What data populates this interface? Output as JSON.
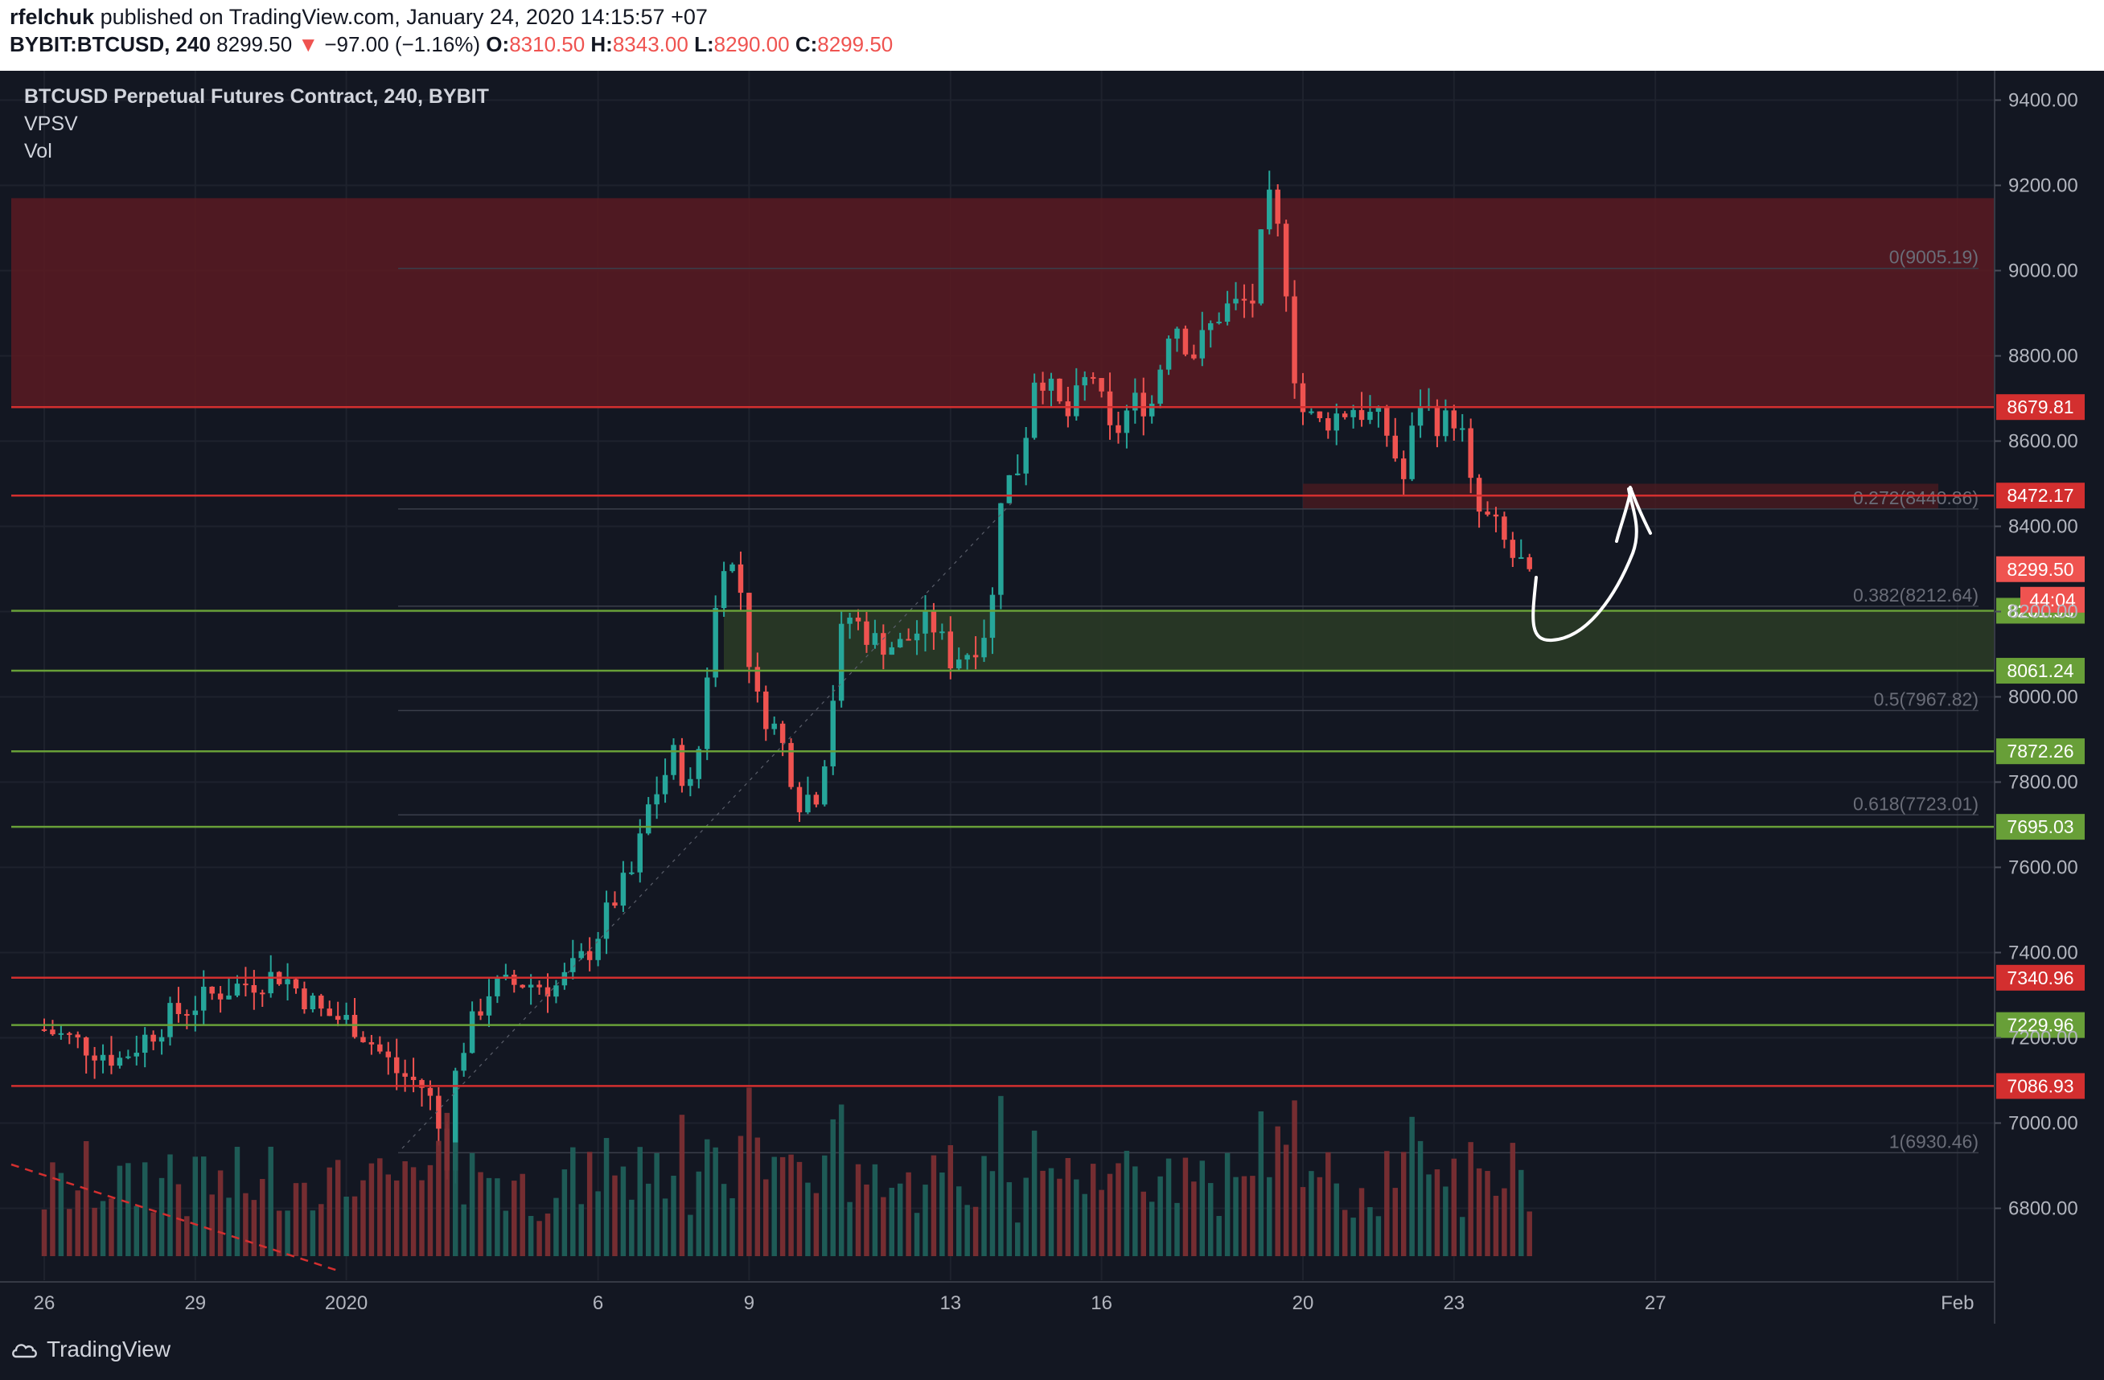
{
  "header": {
    "author": "rfelchuk",
    "published_text": "published on TradingView.com, January 24, 2020 14:15:57 +07",
    "symbol": "BYBIT:BTCUSD, 240",
    "last": "8299.50",
    "change": "−97.00 (−1.16%)",
    "o_label": "O:",
    "o": "8310.50",
    "h_label": "H:",
    "h": "8343.00",
    "l_label": "L:",
    "l": "8290.00",
    "c_label": "C:",
    "c": "8299.50"
  },
  "footer": {
    "brand": "TradingView"
  },
  "chart_data": {
    "type": "candlestick",
    "title": "BTCUSD Perpetual Futures Contract, 240, BYBIT",
    "indicators": [
      "VPSV",
      "Vol"
    ],
    "ylim": [
      6650,
      9450
    ],
    "y_ticks": [
      9400,
      9200,
      9000,
      8800,
      8600,
      8400,
      8200,
      8000,
      7800,
      7600,
      7400,
      7200,
      7000,
      6800
    ],
    "y_tick_labels": [
      "9400.00",
      "9200.00",
      "9000.00",
      "8800.00",
      "8600.00",
      "8400.00",
      "8200.00",
      "8000.00",
      "7800.00",
      "7600.00",
      "7400.00",
      "7200.00",
      "7000.00",
      "6800.00"
    ],
    "x_tick_labels": [
      "26",
      "29",
      "2020",
      "6",
      "9",
      "13",
      "16",
      "20",
      "23",
      "27",
      "Feb"
    ],
    "x_tick_days": [
      0,
      3,
      6,
      11,
      14,
      18,
      21,
      25,
      28,
      32,
      38
    ],
    "candle_anchors": [
      [
        0,
        7220
      ],
      [
        1.5,
        7150
      ],
      [
        2.5,
        7250
      ],
      [
        3.5,
        7310
      ],
      [
        4.7,
        7350
      ],
      [
        5.5,
        7260
      ],
      [
        6.2,
        7230
      ],
      [
        7.0,
        7120
      ],
      [
        7.6,
        7080
      ],
      [
        8.0,
        6920
      ],
      [
        8.2,
        7150
      ],
      [
        8.8,
        7310
      ],
      [
        9.5,
        7330
      ],
      [
        10.2,
        7320
      ],
      [
        10.8,
        7400
      ],
      [
        11.3,
        7520
      ],
      [
        11.7,
        7590
      ],
      [
        12.0,
        7740
      ],
      [
        12.5,
        7860
      ],
      [
        12.9,
        7770
      ],
      [
        13.2,
        8100
      ],
      [
        13.5,
        8330
      ],
      [
        13.8,
        8280
      ],
      [
        14.1,
        8000
      ],
      [
        14.6,
        7910
      ],
      [
        15.0,
        7760
      ],
      [
        15.4,
        7780
      ],
      [
        15.9,
        8200
      ],
      [
        16.5,
        8130
      ],
      [
        17.0,
        8120
      ],
      [
        17.6,
        8180
      ],
      [
        18.0,
        8090
      ],
      [
        18.4,
        8110
      ],
      [
        18.8,
        8180
      ],
      [
        19.0,
        8480
      ],
      [
        19.4,
        8550
      ],
      [
        19.7,
        8780
      ],
      [
        20.3,
        8650
      ],
      [
        20.8,
        8770
      ],
      [
        21.2,
        8600
      ],
      [
        21.6,
        8690
      ],
      [
        22.0,
        8690
      ],
      [
        22.4,
        8900
      ],
      [
        22.8,
        8800
      ],
      [
        23.4,
        8910
      ],
      [
        24.0,
        8930
      ],
      [
        24.3,
        9170
      ],
      [
        24.6,
        9050
      ],
      [
        24.9,
        8680
      ],
      [
        25.3,
        8640
      ],
      [
        26.0,
        8680
      ],
      [
        26.6,
        8640
      ],
      [
        27.0,
        8510
      ],
      [
        27.3,
        8700
      ],
      [
        27.7,
        8640
      ],
      [
        28.1,
        8660
      ],
      [
        28.4,
        8440
      ],
      [
        28.8,
        8400
      ],
      [
        29.2,
        8320
      ],
      [
        29.5,
        8300
      ]
    ],
    "candles_count": 178,
    "last_price": 8299.5,
    "countdown": "44:04",
    "horizontal_levels": [
      {
        "price": 8679.81,
        "label": "8679.81",
        "color": "#d32f2f",
        "kind": "resistance"
      },
      {
        "price": 8472.17,
        "label": "8472.17",
        "color": "#d32f2f",
        "kind": "resistance"
      },
      {
        "price": 8201.98,
        "label": "8201.98",
        "color": "#689f38",
        "kind": "support"
      },
      {
        "price": 8061.24,
        "label": "8061.24",
        "color": "#689f38",
        "kind": "support"
      },
      {
        "price": 7872.26,
        "label": "7872.26",
        "color": "#689f38",
        "kind": "support"
      },
      {
        "price": 7695.03,
        "label": "7695.03",
        "color": "#689f38",
        "kind": "support"
      },
      {
        "price": 7340.96,
        "label": "7340.96",
        "color": "#d32f2f",
        "kind": "resistance"
      },
      {
        "price": 7229.96,
        "label": "7229.96",
        "color": "#689f38",
        "kind": "support"
      },
      {
        "price": 7086.93,
        "label": "7086.93",
        "color": "#d32f2f",
        "kind": "resistance"
      }
    ],
    "fib_levels": [
      {
        "label": "0(9005.19)",
        "price": 9005.19
      },
      {
        "label": "0.272(8440.86)",
        "price": 8440.86
      },
      {
        "label": "0.382(8212.64)",
        "price": 8212.64
      },
      {
        "label": "0.5(7967.82)",
        "price": 7967.82
      },
      {
        "label": "0.618(7723.01)",
        "price": 7723.01
      },
      {
        "label": "1(6930.46)",
        "price": 6930.46
      }
    ],
    "zones": [
      {
        "from": 8679.81,
        "to": 9170,
        "color": "#5a1a22"
      },
      {
        "from": 8061.24,
        "to": 8201.98,
        "color": "#2a3a26"
      }
    ],
    "colors": {
      "up": "#26a69a",
      "down": "#ef5350",
      "background": "#131722",
      "grid": "#1e222d"
    }
  }
}
